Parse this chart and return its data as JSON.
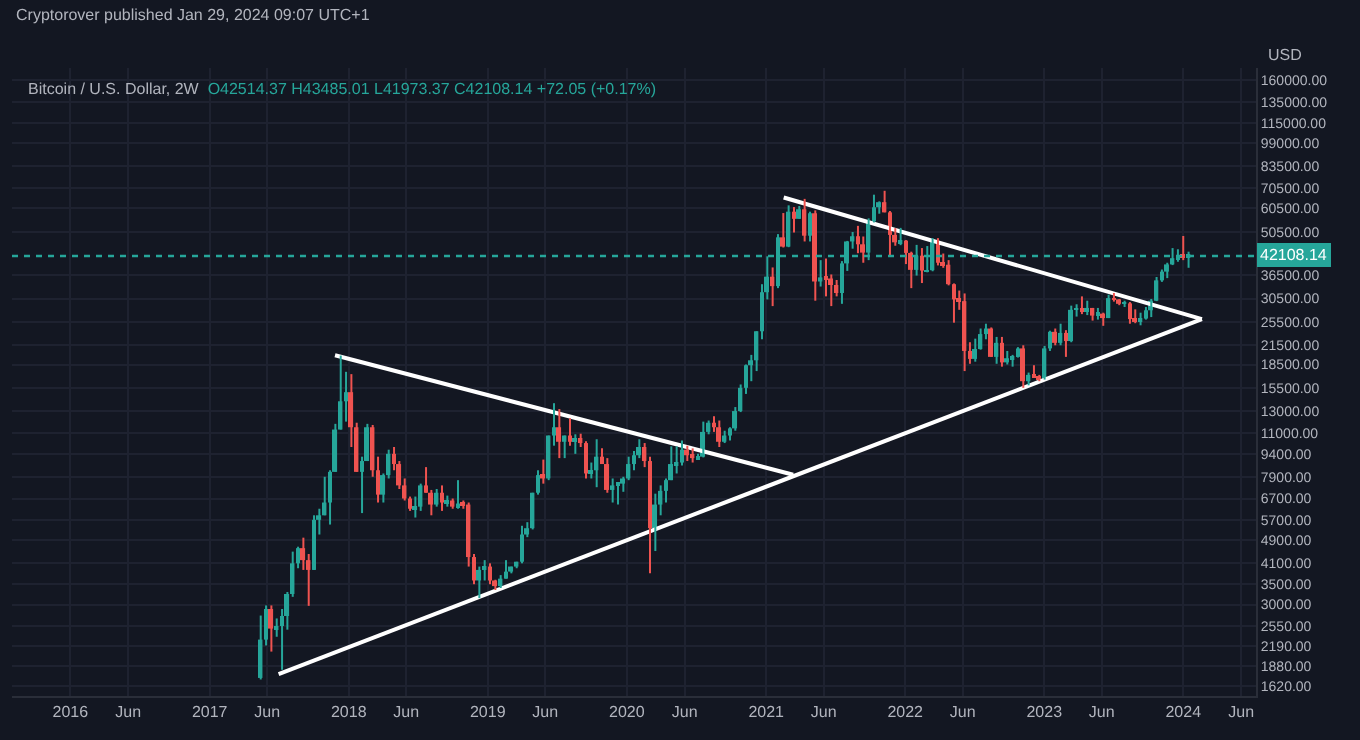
{
  "chart_data": {
    "type": "candlestick",
    "title": "Bitcoin / U.S. Dollar, 2W",
    "subtitle": "O42514.37 H43485.01 L41973.37 C42108.14 +72.05 (+0.17%)",
    "ylabel": "USD",
    "annotations": [
      "Cryptorover published Jan 29, 2024 09:07 UTC+1"
    ],
    "x": [
      "2017-05-15",
      "2017-05-29",
      "2017-06-12",
      "2017-06-26",
      "2017-07-10",
      "2017-07-24",
      "2017-08-07",
      "2017-08-21",
      "2017-09-04",
      "2017-09-18",
      "2017-10-02",
      "2017-10-16",
      "2017-10-30",
      "2017-11-13",
      "2017-11-27",
      "2017-12-11",
      "2017-12-25",
      "2018-01-08",
      "2018-01-22",
      "2018-02-05",
      "2018-02-19",
      "2018-03-05",
      "2018-03-19",
      "2018-04-02",
      "2018-04-16",
      "2018-04-30",
      "2018-05-14",
      "2018-05-28",
      "2018-06-11",
      "2018-06-25",
      "2018-07-09",
      "2018-07-23",
      "2018-08-06",
      "2018-08-20",
      "2018-09-03",
      "2018-09-17",
      "2018-10-01",
      "2018-10-15",
      "2018-10-29",
      "2018-11-12",
      "2018-11-26",
      "2018-12-10",
      "2018-12-24",
      "2019-01-07",
      "2019-01-21",
      "2019-02-04",
      "2019-02-18",
      "2019-03-04",
      "2019-03-18",
      "2019-04-01",
      "2019-04-15",
      "2019-04-29",
      "2019-05-13",
      "2019-05-27",
      "2019-06-10",
      "2019-06-24",
      "2019-07-08",
      "2019-07-22",
      "2019-08-05",
      "2019-08-19",
      "2019-09-02",
      "2019-09-16",
      "2019-09-30",
      "2019-10-14",
      "2019-10-28",
      "2019-11-11",
      "2019-11-25",
      "2019-12-09",
      "2019-12-23",
      "2020-01-06",
      "2020-01-20",
      "2020-02-03",
      "2020-02-17",
      "2020-03-02",
      "2020-03-16",
      "2020-03-30",
      "2020-04-13",
      "2020-04-27",
      "2020-05-11",
      "2020-05-25",
      "2020-06-08",
      "2020-06-22",
      "2020-07-06",
      "2020-07-20",
      "2020-08-03",
      "2020-08-17",
      "2020-08-31",
      "2020-09-14",
      "2020-09-28",
      "2020-10-12",
      "2020-10-26",
      "2020-11-09",
      "2020-11-23",
      "2020-12-07",
      "2020-12-21",
      "2021-01-04",
      "2021-01-18",
      "2021-02-01",
      "2021-02-15",
      "2021-03-01",
      "2021-03-15",
      "2021-03-29",
      "2021-04-12",
      "2021-04-26",
      "2021-05-10",
      "2021-05-24",
      "2021-06-07",
      "2021-06-21",
      "2021-07-05",
      "2021-07-19",
      "2021-08-02",
      "2021-08-16",
      "2021-08-30",
      "2021-09-13",
      "2021-09-27",
      "2021-10-11",
      "2021-10-25",
      "2021-11-08",
      "2021-11-22",
      "2021-12-06",
      "2021-12-20",
      "2022-01-03",
      "2022-01-17",
      "2022-01-31",
      "2022-02-14",
      "2022-02-28",
      "2022-03-14",
      "2022-03-28",
      "2022-04-11",
      "2022-04-25",
      "2022-05-09",
      "2022-05-23",
      "2022-06-06",
      "2022-06-20",
      "2022-07-04",
      "2022-07-18",
      "2022-08-01",
      "2022-08-15",
      "2022-08-29",
      "2022-09-12",
      "2022-09-26",
      "2022-10-10",
      "2022-10-24",
      "2022-11-07",
      "2022-11-21",
      "2022-12-05",
      "2022-12-19",
      "2023-01-02",
      "2023-01-16",
      "2023-01-30",
      "2023-02-13",
      "2023-02-27",
      "2023-03-13",
      "2023-03-27",
      "2023-04-10",
      "2023-04-24",
      "2023-05-08",
      "2023-05-22",
      "2023-06-05",
      "2023-06-19",
      "2023-07-03",
      "2023-07-17",
      "2023-07-31",
      "2023-08-14",
      "2023-08-28",
      "2023-09-11",
      "2023-09-25",
      "2023-10-09",
      "2023-10-23",
      "2023-11-06",
      "2023-11-20",
      "2023-12-04",
      "2023-12-18",
      "2024-01-01",
      "2024-01-15"
    ],
    "ohlc": [
      [
        1720,
        2760,
        1700,
        2300
      ],
      [
        2300,
        2980,
        2200,
        2900
      ],
      [
        2900,
        2980,
        2100,
        2500
      ],
      [
        2500,
        2700,
        2350,
        2550
      ],
      [
        2550,
        2900,
        1830,
        2750
      ],
      [
        2750,
        3300,
        2480,
        3250
      ],
      [
        3250,
        4480,
        3180,
        4100
      ],
      [
        4100,
        4650,
        3950,
        4600
      ],
      [
        4600,
        4980,
        3900,
        4200
      ],
      [
        4200,
        4400,
        2970,
        3900
      ],
      [
        3900,
        5900,
        3900,
        5700
      ],
      [
        5700,
        6200,
        5100,
        5900
      ],
      [
        5900,
        7900,
        5900,
        6500
      ],
      [
        6500,
        8300,
        5500,
        8200
      ],
      [
        8200,
        11800,
        8200,
        11300
      ],
      [
        11300,
        19800,
        11300,
        14000
      ],
      [
        14000,
        17500,
        12000,
        15000
      ],
      [
        15000,
        17200,
        9900,
        11500
      ],
      [
        11500,
        11900,
        8200,
        8200
      ],
      [
        8200,
        9200,
        6000,
        8900
      ],
      [
        8900,
        11800,
        8900,
        11500
      ],
      [
        11500,
        11700,
        7900,
        8300
      ],
      [
        8300,
        9200,
        6500,
        6900
      ],
      [
        6900,
        8100,
        6500,
        8000
      ],
      [
        8000,
        9700,
        7800,
        9400
      ],
      [
        9400,
        9900,
        8300,
        8700
      ],
      [
        8700,
        8900,
        7200,
        7400
      ],
      [
        7400,
        7800,
        6600,
        6700
      ],
      [
        6700,
        6800,
        6100,
        6200
      ],
      [
        6200,
        6800,
        5800,
        6300
      ],
      [
        6300,
        7500,
        6100,
        7400
      ],
      [
        7400,
        8500,
        7000,
        7000
      ],
      [
        7000,
        7150,
        5900,
        6400
      ],
      [
        6400,
        7200,
        6300,
        7000
      ],
      [
        7000,
        7400,
        6100,
        6500
      ],
      [
        6500,
        6850,
        6300,
        6600
      ],
      [
        6600,
        6700,
        6200,
        6300
      ],
      [
        6300,
        7700,
        6200,
        6450
      ],
      [
        6450,
        6600,
        6200,
        6400
      ],
      [
        6400,
        6500,
        4000,
        4300
      ],
      [
        4300,
        4400,
        3500,
        3600
      ],
      [
        3600,
        4000,
        3150,
        3900
      ],
      [
        3900,
        4200,
        3600,
        4000
      ],
      [
        4000,
        4100,
        3500,
        3600
      ],
      [
        3600,
        3620,
        3350,
        3450
      ],
      [
        3450,
        3750,
        3400,
        3650
      ],
      [
        3650,
        4200,
        3650,
        3850
      ],
      [
        3850,
        4000,
        3800,
        4000
      ],
      [
        4000,
        4150,
        3950,
        4150
      ],
      [
        4150,
        5450,
        4100,
        5100
      ],
      [
        5100,
        5600,
        5000,
        5350
      ],
      [
        5350,
        7000,
        5300,
        7000
      ],
      [
        7000,
        8300,
        6900,
        8000
      ],
      [
        8000,
        9000,
        7500,
        7800
      ],
      [
        7800,
        10800,
        7700,
        10800
      ],
      [
        10800,
        13800,
        10000,
        11500
      ],
      [
        11500,
        13200,
        9100,
        10300
      ],
      [
        10300,
        10800,
        9100,
        10800
      ],
      [
        10800,
        12300,
        10000,
        10300
      ],
      [
        10300,
        10900,
        9400,
        10500
      ],
      [
        10500,
        10950,
        9900,
        10200
      ],
      [
        10200,
        10350,
        7800,
        8100
      ],
      [
        8100,
        8800,
        7800,
        8300
      ],
      [
        8300,
        10500,
        7300,
        9200
      ],
      [
        9200,
        9800,
        8700,
        8700
      ],
      [
        8700,
        9100,
        7000,
        7150
      ],
      [
        7150,
        7800,
        6500,
        7400
      ],
      [
        7400,
        7600,
        6400,
        7500
      ],
      [
        7500,
        7900,
        7050,
        7800
      ],
      [
        7800,
        9200,
        7700,
        8700
      ],
      [
        8700,
        9600,
        8300,
        9300
      ],
      [
        9300,
        10500,
        9100,
        9900
      ],
      [
        9900,
        10200,
        8500,
        8900
      ],
      [
        8900,
        9200,
        3800,
        5350
      ],
      [
        5350,
        6950,
        4500,
        6400
      ],
      [
        6400,
        7400,
        5900,
        7100
      ],
      [
        7100,
        7800,
        6500,
        7700
      ],
      [
        7700,
        9950,
        7700,
        8700
      ],
      [
        8700,
        9950,
        8100,
        8800
      ],
      [
        8800,
        10400,
        8600,
        9700
      ],
      [
        9700,
        10000,
        8900,
        9300
      ],
      [
        9300,
        9800,
        8800,
        9100
      ],
      [
        9100,
        9400,
        9000,
        9200
      ],
      [
        9200,
        12000,
        9150,
        11100
      ],
      [
        11100,
        12100,
        10900,
        11900
      ],
      [
        11900,
        12500,
        11100,
        11500
      ],
      [
        11500,
        12100,
        9900,
        10300
      ],
      [
        10300,
        11200,
        10200,
        10800
      ],
      [
        10800,
        11500,
        10400,
        11400
      ],
      [
        11400,
        13400,
        11200,
        13000
      ],
      [
        13000,
        15900,
        12900,
        15500
      ],
      [
        15500,
        18500,
        14800,
        18400
      ],
      [
        18400,
        19900,
        16300,
        19100
      ],
      [
        19100,
        23800,
        17600,
        23800
      ],
      [
        23800,
        34000,
        22400,
        32000
      ],
      [
        32000,
        42000,
        30300,
        36000
      ],
      [
        36000,
        38600,
        28800,
        33500
      ],
      [
        33500,
        49700,
        33000,
        48500
      ],
      [
        48500,
        58300,
        44900,
        45200
      ],
      [
        45200,
        61800,
        45000,
        58900
      ],
      [
        58900,
        61000,
        50300,
        55800
      ],
      [
        55800,
        61500,
        55800,
        60000
      ],
      [
        60000,
        64900,
        47000,
        49100
      ],
      [
        49100,
        58900,
        47000,
        58200
      ],
      [
        58200,
        59500,
        30000,
        34700
      ],
      [
        34700,
        40800,
        33400,
        35800
      ],
      [
        35800,
        41300,
        31000,
        35500
      ],
      [
        35500,
        36600,
        28800,
        33800
      ],
      [
        33800,
        35100,
        31000,
        31800
      ],
      [
        31800,
        40500,
        29300,
        39800
      ],
      [
        39800,
        47200,
        37600,
        47000
      ],
      [
        47000,
        50500,
        44500,
        48900
      ],
      [
        48900,
        52900,
        43000,
        46000
      ],
      [
        46000,
        48800,
        40000,
        43200
      ],
      [
        43200,
        56000,
        40800,
        54700
      ],
      [
        54700,
        67000,
        54300,
        60900
      ],
      [
        60900,
        63700,
        58000,
        63300
      ],
      [
        63300,
        69000,
        58600,
        58600
      ],
      [
        58600,
        59200,
        42000,
        49400
      ],
      [
        49400,
        52000,
        45500,
        46700
      ],
      [
        46700,
        52100,
        45700,
        47300
      ],
      [
        47300,
        47500,
        39600,
        43100
      ],
      [
        43100,
        43500,
        33000,
        37900
      ],
      [
        37900,
        45800,
        36300,
        42200
      ],
      [
        42200,
        44700,
        34300,
        37700
      ],
      [
        37700,
        45400,
        37200,
        37800
      ],
      [
        37800,
        48200,
        37500,
        46800
      ],
      [
        46800,
        48200,
        39200,
        40000
      ],
      [
        40000,
        42900,
        38500,
        39400
      ],
      [
        39400,
        40800,
        33700,
        34000
      ],
      [
        34000,
        34200,
        25400,
        30300
      ],
      [
        30300,
        32400,
        28000,
        29900
      ],
      [
        29900,
        31700,
        17600,
        20500
      ],
      [
        20500,
        21900,
        18600,
        19300
      ],
      [
        19300,
        22500,
        18900,
        20800
      ],
      [
        20800,
        24300,
        20700,
        23300
      ],
      [
        23300,
        25200,
        22400,
        24300
      ],
      [
        24300,
        24500,
        19600,
        19600
      ],
      [
        19600,
        22800,
        18600,
        21800
      ],
      [
        21800,
        22800,
        18200,
        18800
      ],
      [
        18800,
        20500,
        18500,
        19400
      ],
      [
        19400,
        19900,
        18200,
        19600
      ],
      [
        19600,
        21100,
        19500,
        20900
      ],
      [
        20900,
        21400,
        15500,
        16300
      ],
      [
        16300,
        17400,
        15800,
        17100
      ],
      [
        17100,
        18400,
        16700,
        16800
      ],
      [
        16800,
        17100,
        16300,
        16600
      ],
      [
        16600,
        21300,
        16500,
        20900
      ],
      [
        20900,
        23900,
        20500,
        23700
      ],
      [
        23700,
        24300,
        21400,
        21800
      ],
      [
        21800,
        25200,
        21400,
        23500
      ],
      [
        23500,
        24000,
        19600,
        22100
      ],
      [
        22100,
        28900,
        21900,
        28000
      ],
      [
        28000,
        29200,
        26600,
        28300
      ],
      [
        28300,
        31000,
        27100,
        27600
      ],
      [
        27600,
        30000,
        26900,
        28400
      ],
      [
        28400,
        28400,
        25800,
        26800
      ],
      [
        26800,
        28400,
        26000,
        27200
      ],
      [
        27200,
        27400,
        24800,
        26300
      ],
      [
        26300,
        31400,
        26300,
        30600
      ],
      [
        30600,
        31800,
        29800,
        30300
      ],
      [
        30300,
        30400,
        29000,
        29300
      ],
      [
        29300,
        30000,
        28600,
        29400
      ],
      [
        29400,
        29700,
        25200,
        26100
      ],
      [
        26100,
        28100,
        25300,
        25800
      ],
      [
        25800,
        27400,
        24900,
        26200
      ],
      [
        26200,
        28600,
        26000,
        27900
      ],
      [
        27900,
        30400,
        26500,
        30000
      ],
      [
        30000,
        35900,
        29900,
        35000
      ],
      [
        35000,
        38000,
        34600,
        37400
      ],
      [
        37400,
        40000,
        35600,
        39500
      ],
      [
        39500,
        44700,
        39300,
        41400
      ],
      [
        41400,
        44300,
        40300,
        42300
      ],
      [
        42300,
        49000,
        40800,
        41700
      ],
      [
        41700,
        43500,
        38500,
        42108.14
      ]
    ],
    "series": [
      {
        "type": "line",
        "color": "#ffffff",
        "x": [
          "2017-11-26",
          "2021-03-13"
        ],
        "values": [
          19850,
          8020
        ]
      },
      {
        "type": "line",
        "color": "#ffffff",
        "x": [
          "2017-07-01",
          "2024-02-19"
        ],
        "values": [
          1770,
          26100
        ]
      },
      {
        "type": "line",
        "color": "#ffffff",
        "x": [
          "2021-02-16",
          "2024-02-19"
        ],
        "values": [
          65600,
          26100
        ]
      }
    ],
    "ref_lines": [
      {
        "axis": "y",
        "value": 42108.14,
        "label": "42108.14",
        "color": "#26a69a",
        "line_style": "dotted"
      }
    ],
    "xlim": [
      "2015-08-01",
      "2024-07-10"
    ],
    "xticks": [
      {
        "value": "2016-01-01",
        "label": "2016"
      },
      {
        "value": "2016-06-01",
        "label": "Jun"
      },
      {
        "value": "2017-01-01",
        "label": "2017"
      },
      {
        "value": "2017-06-01",
        "label": "Jun"
      },
      {
        "value": "2018-01-01",
        "label": "2018"
      },
      {
        "value": "2018-06-01",
        "label": "Jun"
      },
      {
        "value": "2019-01-01",
        "label": "2019"
      },
      {
        "value": "2019-06-01",
        "label": "Jun"
      },
      {
        "value": "2020-01-01",
        "label": "2020"
      },
      {
        "value": "2020-06-01",
        "label": "Jun"
      },
      {
        "value": "2021-01-01",
        "label": "2021"
      },
      {
        "value": "2021-06-01",
        "label": "Jun"
      },
      {
        "value": "2022-01-01",
        "label": "2022"
      },
      {
        "value": "2022-06-01",
        "label": "Jun"
      },
      {
        "value": "2023-01-01",
        "label": "2023"
      },
      {
        "value": "2023-06-01",
        "label": "Jun"
      },
      {
        "value": "2024-01-01",
        "label": "2024"
      },
      {
        "value": "2024-06-01",
        "label": "Jun"
      }
    ],
    "ylim": [
      1500,
      175000
    ],
    "yticks": [
      {
        "value": 160000,
        "label": "160000.00"
      },
      {
        "value": 135000,
        "label": "135000.00"
      },
      {
        "value": 115000,
        "label": "115000.00"
      },
      {
        "value": 99000,
        "label": "99000.00"
      },
      {
        "value": 83500,
        "label": "83500.00"
      },
      {
        "value": 70500,
        "label": "70500.00"
      },
      {
        "value": 60500,
        "label": "60500.00"
      },
      {
        "value": 50500,
        "label": "50500.00"
      },
      {
        "value": 36500,
        "label": "36500.00"
      },
      {
        "value": 30500,
        "label": "30500.00"
      },
      {
        "value": 25500,
        "label": "25500.00"
      },
      {
        "value": 21500,
        "label": "21500.00"
      },
      {
        "value": 18500,
        "label": "18500.00"
      },
      {
        "value": 15500,
        "label": "15500.00"
      },
      {
        "value": 13000,
        "label": "13000.00"
      },
      {
        "value": 11000,
        "label": "11000.00"
      },
      {
        "value": 9400,
        "label": "9400.00"
      },
      {
        "value": 7900,
        "label": "7900.00"
      },
      {
        "value": 6700,
        "label": "6700.00"
      },
      {
        "value": 5700,
        "label": "5700.00"
      },
      {
        "value": 4900,
        "label": "4900.00"
      },
      {
        "value": 4100,
        "label": "4100.00"
      },
      {
        "value": 3500,
        "label": "3500.00"
      },
      {
        "value": 3000,
        "label": "3000.00"
      },
      {
        "value": 2550,
        "label": "2550.00"
      },
      {
        "value": 2190,
        "label": "2190.00"
      },
      {
        "value": 1880,
        "label": "1880.00"
      },
      {
        "value": 1620,
        "label": "1620.00"
      }
    ],
    "log": true,
    "grid": true
  }
}
